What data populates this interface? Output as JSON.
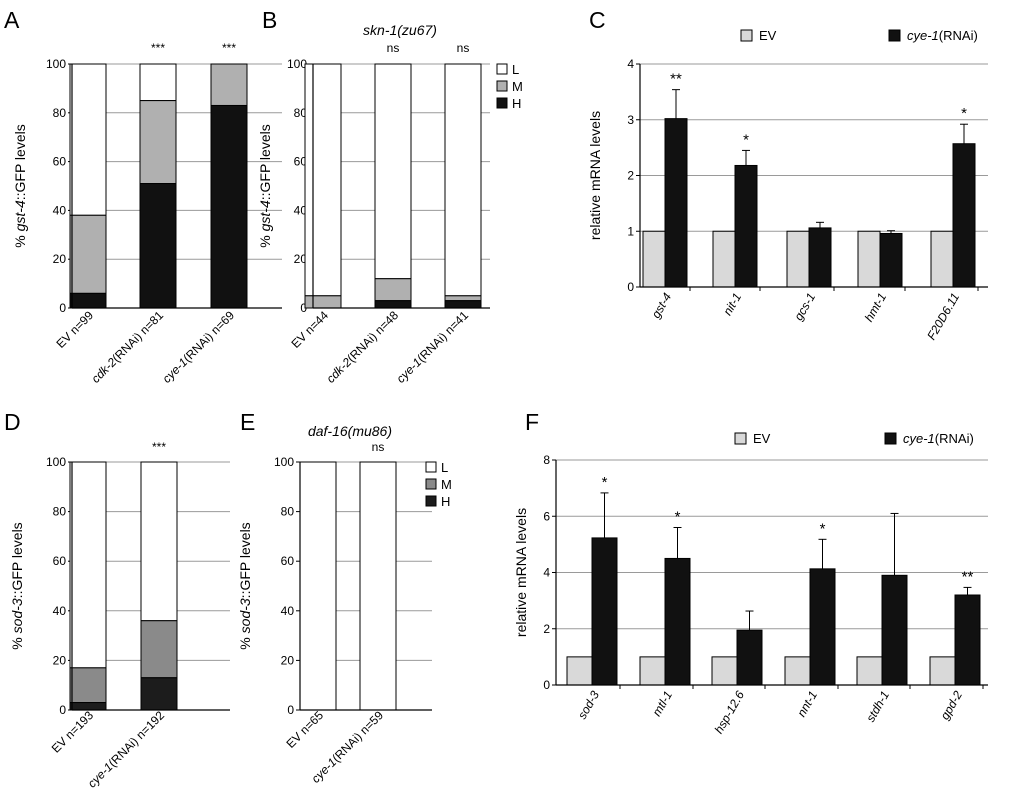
{
  "figure": {
    "panels": [
      {
        "id": "A",
        "letter": "A",
        "type": "stacked_percent",
        "ylabel": [
          {
            "t": "% "
          },
          {
            "t": "gst-4",
            "i": true
          },
          {
            "t": "::GFP levels"
          }
        ],
        "yticks": [
          "0",
          "20",
          "40",
          "60",
          "80",
          "100"
        ],
        "categories": [
          {
            "label": [
              {
                "t": "EV n=99"
              }
            ],
            "H": 6,
            "M": 32,
            "L": 62,
            "sig": ""
          },
          {
            "label": [
              {
                "t": "cdk-2",
                "i": true
              },
              {
                "t": "(RNAi) n=81"
              }
            ],
            "H": 51,
            "M": 34,
            "L": 15,
            "sig": "***"
          },
          {
            "label": [
              {
                "t": "cye-1",
                "i": true
              },
              {
                "t": "(RNAi) n=69"
              }
            ],
            "H": 83,
            "M": 17,
            "L": 0,
            "sig": "***"
          }
        ]
      },
      {
        "id": "B",
        "letter": "B",
        "type": "stacked_percent",
        "title": "skn-1(zu67)",
        "ylabel": [
          {
            "t": "% "
          },
          {
            "t": "gst-4",
            "i": true
          },
          {
            "t": "::GFP levels"
          }
        ],
        "yticks": [
          "0",
          "20",
          "40",
          "60",
          "80",
          "100"
        ],
        "legend": [
          "L",
          "M",
          "H"
        ],
        "categories": [
          {
            "label": [
              {
                "t": "EV n=44"
              }
            ],
            "H": 0,
            "M": 5,
            "L": 95,
            "sig": ""
          },
          {
            "label": [
              {
                "t": "cdk-2",
                "i": true
              },
              {
                "t": "(RNAi) n=48"
              }
            ],
            "H": 3,
            "M": 9,
            "L": 88,
            "sig": "ns"
          },
          {
            "label": [
              {
                "t": "cye-1",
                "i": true
              },
              {
                "t": "(RNAi) n=41"
              }
            ],
            "H": 3,
            "M": 2,
            "L": 95,
            "sig": "ns"
          }
        ]
      },
      {
        "id": "C",
        "letter": "C",
        "type": "grouped_bar",
        "ylabel": [
          {
            "t": "relative mRNA levels"
          }
        ],
        "yticks": [
          "0",
          "1",
          "2",
          "3",
          "4"
        ],
        "ymax": 4,
        "legend": [
          [
            {
              "t": "EV"
            }
          ],
          [
            {
              "t": "cye-1",
              "i": true
            },
            {
              "t": "(RNAi)"
            }
          ]
        ],
        "categories": [
          "gst-4",
          "nit-1",
          "gcs-1",
          "hmt-1",
          "F20D6.11"
        ],
        "ev": [
          1,
          1,
          1,
          1,
          1
        ],
        "rnai": [
          3.02,
          2.18,
          1.06,
          0.96,
          2.57
        ],
        "err": [
          0.52,
          0.27,
          0.1,
          0.05,
          0.35
        ],
        "sig": [
          "**",
          "*",
          "",
          "",
          "*"
        ]
      },
      {
        "id": "D",
        "letter": "D",
        "type": "stacked_percent",
        "ylabel": [
          {
            "t": "% "
          },
          {
            "t": "sod-3",
            "i": true
          },
          {
            "t": "::GFP levels"
          }
        ],
        "yticks": [
          "0",
          "20",
          "40",
          "60",
          "80",
          "100"
        ],
        "categories": [
          {
            "label": [
              {
                "t": "EV n=193"
              }
            ],
            "H": 3,
            "M": 14,
            "L": 83,
            "sig": ""
          },
          {
            "label": [
              {
                "t": "cye-1",
                "i": true
              },
              {
                "t": "(RNAi) n=192"
              }
            ],
            "H": 13,
            "M": 23,
            "L": 64,
            "sig": "***"
          }
        ]
      },
      {
        "id": "E",
        "letter": "E",
        "type": "stacked_percent",
        "title": "daf-16(mu86)",
        "ylabel": [
          {
            "t": "% "
          },
          {
            "t": "sod-3",
            "i": true
          },
          {
            "t": "::GFP levels"
          }
        ],
        "yticks": [
          "0",
          "20",
          "40",
          "60",
          "80",
          "100"
        ],
        "legend": [
          "L",
          "M",
          "H"
        ],
        "categories": [
          {
            "label": [
              {
                "t": "EV n=65"
              }
            ],
            "H": 0,
            "M": 0,
            "L": 100,
            "sig": ""
          },
          {
            "label": [
              {
                "t": "cye-1",
                "i": true
              },
              {
                "t": "(RNAi) n=59"
              }
            ],
            "H": 0,
            "M": 0,
            "L": 100,
            "sig": "ns"
          }
        ]
      },
      {
        "id": "F",
        "letter": "F",
        "type": "grouped_bar",
        "ylabel": [
          {
            "t": "relative mRNA levels"
          }
        ],
        "yticks": [
          "0",
          "2",
          "4",
          "6",
          "8"
        ],
        "ymax": 8,
        "legend": [
          [
            {
              "t": "EV"
            }
          ],
          [
            {
              "t": "cye-1",
              "i": true
            },
            {
              "t": "(RNAi)"
            }
          ]
        ],
        "categories": [
          "sod-3",
          "mtl-1",
          "hsp-12.6",
          "nnt-1",
          "stdh-1",
          "gpd-2"
        ],
        "ev": [
          1,
          1,
          1,
          1,
          1,
          1
        ],
        "rnai": [
          5.23,
          4.5,
          1.95,
          4.13,
          3.9,
          3.2
        ],
        "err": [
          1.6,
          1.1,
          0.68,
          1.05,
          2.2,
          0.27
        ],
        "sig": [
          "*",
          "*",
          "",
          "*",
          "",
          "**"
        ]
      }
    ]
  },
  "chart_data": [
    {
      "type": "bar",
      "stacked": true,
      "title": "A",
      "ylabel": "% gst-4::GFP levels",
      "ylim": [
        0,
        100
      ],
      "categories": [
        "EV n=99",
        "cdk-2(RNAi) n=81",
        "cye-1(RNAi) n=69"
      ],
      "series": [
        {
          "name": "H",
          "values": [
            6,
            51,
            83
          ]
        },
        {
          "name": "M",
          "values": [
            32,
            34,
            17
          ]
        },
        {
          "name": "L",
          "values": [
            62,
            15,
            0
          ]
        }
      ],
      "annotations": [
        "",
        "***",
        "***"
      ]
    },
    {
      "type": "bar",
      "stacked": true,
      "title": "B skn-1(zu67)",
      "ylabel": "% gst-4::GFP levels",
      "ylim": [
        0,
        100
      ],
      "categories": [
        "EV n=44",
        "cdk-2(RNAi) n=48",
        "cye-1(RNAi) n=41"
      ],
      "series": [
        {
          "name": "H",
          "values": [
            0,
            3,
            3
          ]
        },
        {
          "name": "M",
          "values": [
            5,
            9,
            2
          ]
        },
        {
          "name": "L",
          "values": [
            95,
            88,
            95
          ]
        }
      ],
      "annotations": [
        "",
        "ns",
        "ns"
      ]
    },
    {
      "type": "bar",
      "title": "C",
      "ylabel": "relative mRNA levels",
      "ylim": [
        0,
        4
      ],
      "categories": [
        "gst-4",
        "nit-1",
        "gcs-1",
        "hmt-1",
        "F20D6.11"
      ],
      "series": [
        {
          "name": "EV",
          "values": [
            1,
            1,
            1,
            1,
            1
          ]
        },
        {
          "name": "cye-1(RNAi)",
          "values": [
            3.02,
            2.18,
            1.06,
            0.96,
            2.57
          ],
          "error": [
            0.52,
            0.27,
            0.1,
            0.05,
            0.35
          ]
        }
      ],
      "annotations": [
        "**",
        "*",
        "",
        "",
        "*"
      ]
    },
    {
      "type": "bar",
      "stacked": true,
      "title": "D",
      "ylabel": "% sod-3::GFP levels",
      "ylim": [
        0,
        100
      ],
      "categories": [
        "EV n=193",
        "cye-1(RNAi) n=192"
      ],
      "series": [
        {
          "name": "H",
          "values": [
            3,
            13
          ]
        },
        {
          "name": "M",
          "values": [
            14,
            23
          ]
        },
        {
          "name": "L",
          "values": [
            83,
            64
          ]
        }
      ],
      "annotations": [
        "",
        "***"
      ]
    },
    {
      "type": "bar",
      "stacked": true,
      "title": "E daf-16(mu86)",
      "ylabel": "% sod-3::GFP levels",
      "ylim": [
        0,
        100
      ],
      "categories": [
        "EV n=65",
        "cye-1(RNAi) n=59"
      ],
      "series": [
        {
          "name": "H",
          "values": [
            0,
            0
          ]
        },
        {
          "name": "M",
          "values": [
            0,
            0
          ]
        },
        {
          "name": "L",
          "values": [
            100,
            100
          ]
        }
      ],
      "annotations": [
        "",
        "ns"
      ]
    },
    {
      "type": "bar",
      "title": "F",
      "ylabel": "relative mRNA levels",
      "ylim": [
        0,
        8
      ],
      "categories": [
        "sod-3",
        "mtl-1",
        "hsp-12.6",
        "nnt-1",
        "stdh-1",
        "gpd-2"
      ],
      "series": [
        {
          "name": "EV",
          "values": [
            1,
            1,
            1,
            1,
            1,
            1
          ]
        },
        {
          "name": "cye-1(RNAi)",
          "values": [
            5.23,
            4.5,
            1.95,
            4.13,
            3.9,
            3.2
          ],
          "error": [
            1.6,
            1.1,
            0.68,
            1.05,
            2.2,
            0.27
          ]
        }
      ],
      "annotations": [
        "*",
        "*",
        "",
        "*",
        "",
        "**"
      ]
    }
  ]
}
